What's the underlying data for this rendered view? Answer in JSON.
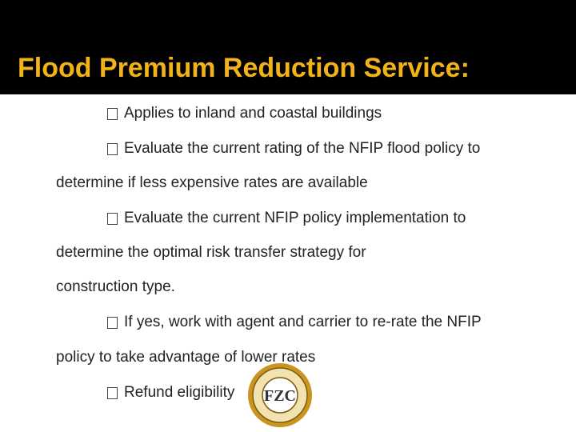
{
  "title": "Flood Premium Reduction Service:",
  "bullets": [
    {
      "lines": [
        "Applies to inland and coastal buildings"
      ]
    },
    {
      "lines": [
        "Evaluate the current rating of the NFIP flood policy to",
        "determine if less expensive rates are available"
      ]
    },
    {
      "lines": [
        "Evaluate the current NFIP policy implementation to",
        "determine the optimal risk transfer strategy for",
        "construction type."
      ]
    },
    {
      "lines": [
        "If yes, work with agent and carrier to re-rate the NFIP",
        "policy to take advantage of lower rates"
      ]
    },
    {
      "lines": [
        "Refund eligibility"
      ]
    }
  ],
  "logo": {
    "text": "FZC"
  }
}
